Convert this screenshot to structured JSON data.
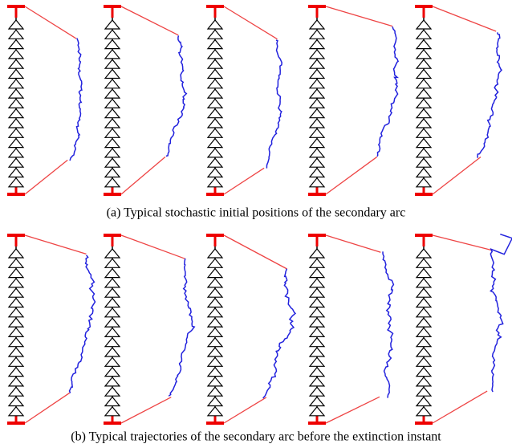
{
  "panels": [
    {
      "caption": "(a) Typical stochastic initial positions of the secondary arc"
    },
    {
      "caption": "(b) Typical trajectories of the secondary arc before the extinction instant"
    }
  ]
}
